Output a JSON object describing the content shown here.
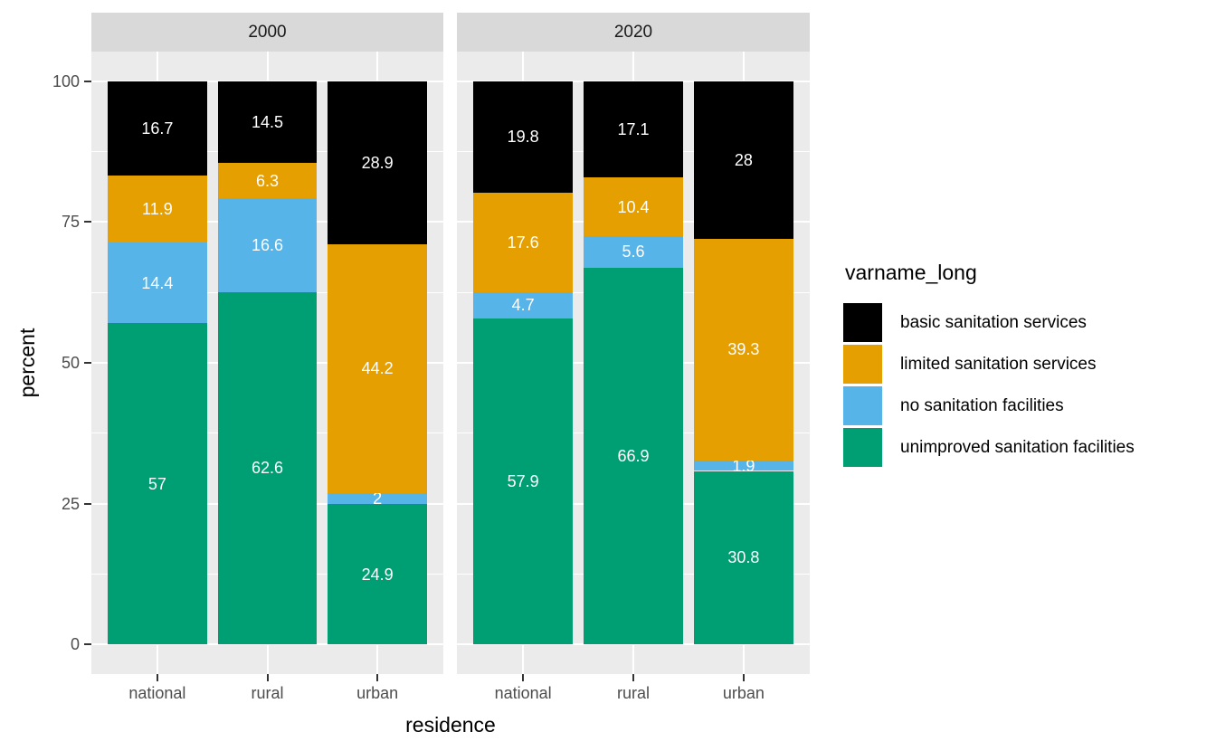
{
  "chart_data": {
    "type": "bar",
    "stacked": true,
    "xlabel": "residence",
    "ylabel": "percent",
    "ylim": [
      0,
      100
    ],
    "yticks": [
      0,
      25,
      50,
      75,
      100
    ],
    "yticks_minor": [
      12.5,
      37.5,
      62.5,
      87.5
    ],
    "grid": true,
    "legend_title": "varname_long",
    "legend_position": "right",
    "legend_entries": [
      "basic sanitation services",
      "limited sanitation services",
      "no sanitation facilities",
      "unimproved sanitation facilities"
    ],
    "colors": {
      "basic sanitation services": "#000000",
      "limited sanitation services": "#e69f00",
      "no sanitation facilities": "#56b4e9",
      "unimproved sanitation facilities": "#009e73"
    },
    "categories": [
      "national",
      "rural",
      "urban"
    ],
    "stack_order_bottom_to_top": [
      "unimproved sanitation facilities",
      "no sanitation facilities",
      "limited sanitation services",
      "basic sanitation services"
    ],
    "facets": [
      {
        "label": "2000",
        "series": [
          {
            "name": "unimproved sanitation facilities",
            "values": [
              57,
              62.6,
              24.9
            ]
          },
          {
            "name": "no sanitation facilities",
            "values": [
              14.4,
              16.6,
              2
            ]
          },
          {
            "name": "limited sanitation services",
            "values": [
              11.9,
              6.3,
              44.2
            ]
          },
          {
            "name": "basic sanitation services",
            "values": [
              16.7,
              14.5,
              28.9
            ]
          }
        ]
      },
      {
        "label": "2020",
        "series": [
          {
            "name": "unimproved sanitation facilities",
            "values": [
              57.9,
              66.9,
              30.8
            ]
          },
          {
            "name": "no sanitation facilities",
            "values": [
              4.7,
              5.6,
              1.9
            ]
          },
          {
            "name": "limited sanitation services",
            "values": [
              17.6,
              10.4,
              39.3
            ]
          },
          {
            "name": "basic sanitation services",
            "values": [
              19.8,
              17.1,
              28
            ]
          }
        ]
      }
    ]
  }
}
